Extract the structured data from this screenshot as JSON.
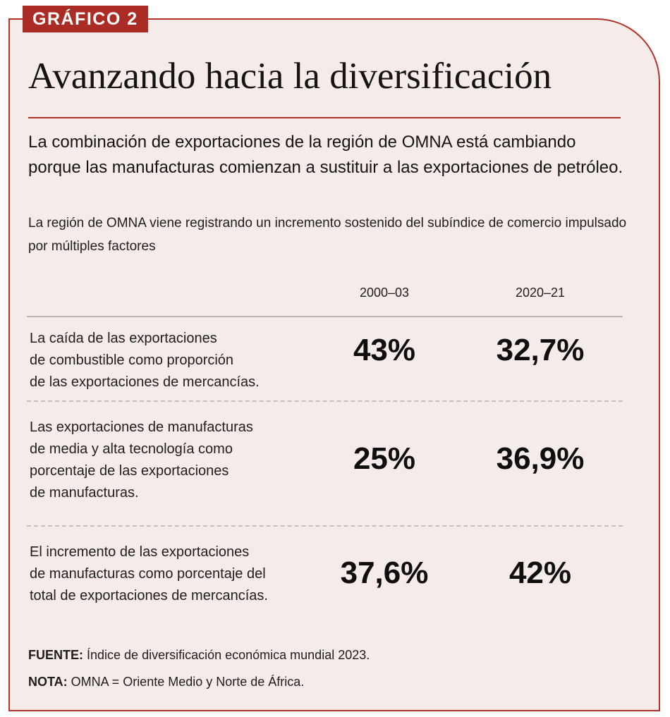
{
  "badge": "GRÁFICO 2",
  "title": "Avanzando hacia la diversificación",
  "subtitle": "La combinación de exportaciones de la región de OMNA está cambiando porque las manufacturas comienzan a sustituir a las exportaciones de petróleo.",
  "description": "La región de OMNA viene registrando un incremento sostenido del subíndice de comercio impulsado por múltiples factores",
  "columns": [
    "2000–03",
    "2020–21"
  ],
  "rows": [
    {
      "label_lines": [
        "La caída de las exportaciones",
        "de combustible como proporción",
        "de las exportaciones de mercancías."
      ],
      "values": [
        "43%",
        "32,7%"
      ]
    },
    {
      "label_lines": [
        "Las exportaciones de manufacturas",
        "de media y alta tecnología como",
        "porcentaje de las exportaciones",
        "de manufacturas."
      ],
      "values": [
        "25%",
        "36,9%"
      ]
    },
    {
      "label_lines": [
        "El incremento de las exportaciones",
        "de manufacturas como porcentaje del",
        "total de exportaciones de mercancías."
      ],
      "values": [
        "37,6%",
        "42%"
      ]
    }
  ],
  "source": {
    "key": "FUENTE:",
    "text": "Índice de diversificación económica mundial 2023."
  },
  "note": {
    "key": "NOTA:",
    "text": "OMNA = Oriente Medio y Norte de África."
  }
}
